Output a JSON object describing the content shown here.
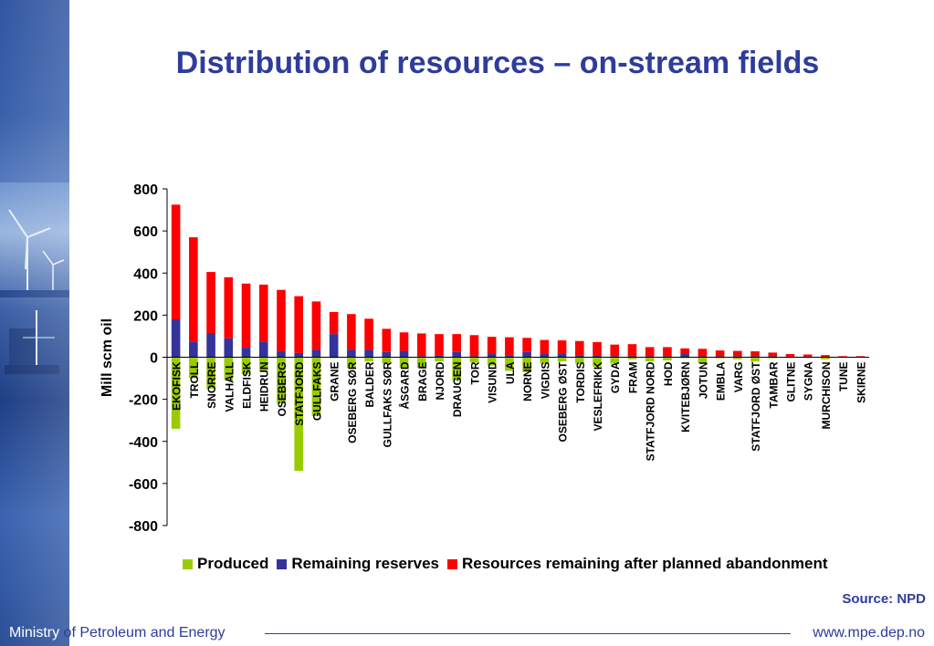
{
  "title": "Distribution of resources – on-stream fields",
  "source": "Source: NPD",
  "footer": {
    "ministry_prefix": "Ministry",
    "ministry_rest": " of Petroleum and Energy",
    "url": "www.mpe.dep.no"
  },
  "colors": {
    "produced": "#99cc00",
    "remaining": "#333399",
    "resources": "#ff0000",
    "title": "#2e3c9b"
  },
  "chart_data": {
    "type": "bar",
    "stacked": true,
    "title": "Distribution of resources – on-stream fields",
    "xlabel": "",
    "ylabel": "Mill scm oil",
    "ylim": [
      -800,
      800
    ],
    "yticks": [
      "800",
      "600",
      "400",
      "200",
      "0",
      "-200",
      "-400",
      "-600",
      "-800"
    ],
    "yticks_values": [
      800,
      600,
      400,
      200,
      0,
      -200,
      -400,
      -600,
      -800
    ],
    "legend_position": "bottom",
    "categories": [
      "EKOFISK",
      "TROLL",
      "SNORRE",
      "VALHALL",
      "ELDFISK",
      "HEIDRUN",
      "OSEBERG",
      "STATFJORD",
      "GULLFAKS",
      "GRANE",
      "OSEBERG SØR",
      "BALDER",
      "GULLFAKS SØR",
      "ÅSGARD",
      "BRAGE",
      "NJORD",
      "DRAUGEN",
      "TOR",
      "VISUND",
      "ULA",
      "NORNE",
      "VIGDIS",
      "OSEBERG ØST",
      "TORDIS",
      "VESLEFRIKK",
      "GYDA",
      "FRAM",
      "STATFJORD NORD",
      "HOD",
      "KVITEBJØRN",
      "JOTUN",
      "EMBLA",
      "VARG",
      "STATFJORD ØST",
      "TAMBAR",
      "GLITNE",
      "SYGNA",
      "MURCHISON",
      "TUNE",
      "SKIRNE"
    ],
    "highlighted": [
      "EKOFISK",
      "TROLL",
      "OSEBERG",
      "STATFJORD",
      "GULLFAKS"
    ],
    "series": [
      {
        "name": "Produced",
        "color": "#99cc00",
        "values": [
          -340,
          -100,
          -150,
          -110,
          -80,
          -70,
          -220,
          -540,
          -280,
          -5,
          -50,
          -20,
          -30,
          -50,
          -50,
          -20,
          -110,
          -25,
          -40,
          -65,
          -70,
          -30,
          -20,
          -30,
          -45,
          -30,
          -10,
          -20,
          -15,
          -5,
          -30,
          -5,
          -10,
          -20,
          -5,
          -3,
          -3,
          -10,
          -1,
          -1
        ]
      },
      {
        "name": "Remaining reserves",
        "color": "#333399",
        "values": [
          180,
          75,
          115,
          90,
          45,
          75,
          30,
          20,
          35,
          110,
          35,
          35,
          25,
          30,
          5,
          10,
          25,
          5,
          15,
          10,
          25,
          15,
          15,
          10,
          10,
          5,
          5,
          5,
          5,
          15,
          5,
          5,
          5,
          5,
          5,
          3,
          3,
          2,
          2,
          2
        ]
      },
      {
        "name": "Resources remaining after planned abandonment",
        "color": "#ff0000",
        "values": [
          545,
          495,
          290,
          290,
          305,
          270,
          290,
          270,
          230,
          105,
          170,
          148,
          110,
          88,
          108,
          100,
          85,
          100,
          82,
          85,
          67,
          67,
          65,
          67,
          62,
          55,
          57,
          43,
          43,
          27,
          35,
          27,
          25,
          23,
          17,
          12,
          10,
          8,
          3,
          3
        ]
      }
    ]
  }
}
